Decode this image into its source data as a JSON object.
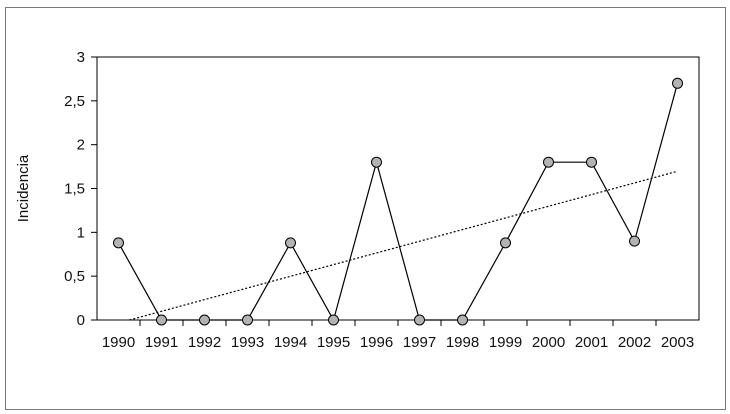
{
  "chart_data": {
    "type": "line",
    "title": "",
    "xlabel": "",
    "ylabel": "Incidencia",
    "categories": [
      "1990",
      "1991",
      "1992",
      "1993",
      "1994",
      "1995",
      "1996",
      "1997",
      "1998",
      "1999",
      "2000",
      "2001",
      "2002",
      "2003"
    ],
    "series": [
      {
        "values": [
          0.88,
          0,
          0,
          0,
          0.88,
          0,
          1.8,
          0,
          0,
          0.88,
          1.8,
          1.8,
          0.9,
          2.7
        ],
        "line_color": "#000000",
        "marker_color": "#b3b3b3"
      }
    ],
    "trendline": {
      "type": "linear",
      "style": "dotted",
      "color": "#000000"
    },
    "ylim": [
      0,
      3
    ],
    "yticks": [
      "0",
      "0,5",
      "1",
      "1,5",
      "2",
      "2,5",
      "3"
    ],
    "grid": false,
    "legend": "none"
  }
}
